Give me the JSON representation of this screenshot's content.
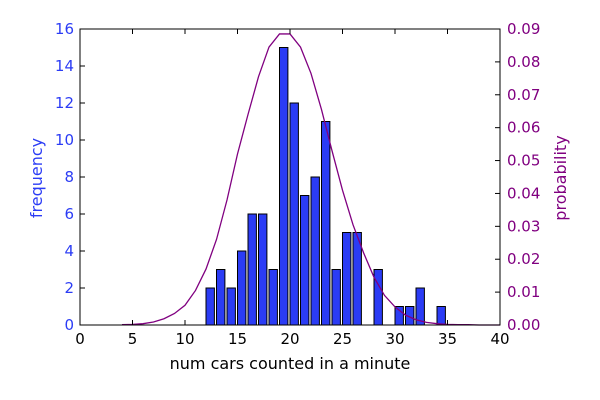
{
  "chart_data": {
    "type": "bar",
    "xlabel": "num cars counted in a minute",
    "ylabel_left": "frequency",
    "ylabel_right": "probability",
    "xlim": [
      0,
      40
    ],
    "xticks": [
      0,
      5,
      10,
      15,
      20,
      25,
      30,
      35,
      40
    ],
    "ylim_left": [
      0,
      16
    ],
    "yticks_left": [
      0,
      2,
      4,
      6,
      8,
      10,
      12,
      14,
      16
    ],
    "ylim_right": [
      0,
      0.09
    ],
    "yticks_right": [
      "0.00",
      "0.01",
      "0.02",
      "0.03",
      "0.04",
      "0.05",
      "0.06",
      "0.07",
      "0.08",
      "0.09"
    ],
    "grid": false,
    "bin_width": 0.8,
    "colors": {
      "bars": "#2b3cf5",
      "bar_edge": "#000000",
      "curve": "#800080",
      "left_axis": "#2b3cf5",
      "right_axis": "#800080"
    },
    "histogram": {
      "x": [
        12,
        13,
        14,
        15,
        16,
        17,
        18,
        19,
        20,
        21,
        22,
        23,
        24,
        25,
        26,
        28,
        30,
        31,
        32,
        34
      ],
      "values": [
        2,
        3,
        2,
        4,
        6,
        6,
        3,
        15,
        12,
        7,
        8,
        11,
        3,
        5,
        5,
        3,
        1,
        1,
        2,
        1
      ]
    },
    "curve": {
      "x": [
        4,
        5,
        6,
        7,
        8,
        9,
        10,
        11,
        12,
        13,
        14,
        15,
        16,
        17,
        18,
        19,
        20,
        21,
        22,
        23,
        24,
        25,
        26,
        27,
        28,
        29,
        30,
        31,
        32,
        33,
        34,
        35,
        36,
        37,
        38,
        39,
        40
      ],
      "y": [
        0.0001,
        0.0002,
        0.0004,
        0.0009,
        0.0019,
        0.0035,
        0.006,
        0.0105,
        0.017,
        0.026,
        0.038,
        0.052,
        0.064,
        0.0755,
        0.0845,
        0.0885,
        0.0885,
        0.0845,
        0.0765,
        0.0655,
        0.053,
        0.041,
        0.0305,
        0.022,
        0.0145,
        0.009,
        0.0055,
        0.003,
        0.0016,
        0.0008,
        0.0004,
        0.0002,
        0.0001,
        0.0001,
        0.0,
        0.0,
        0.0
      ]
    }
  }
}
